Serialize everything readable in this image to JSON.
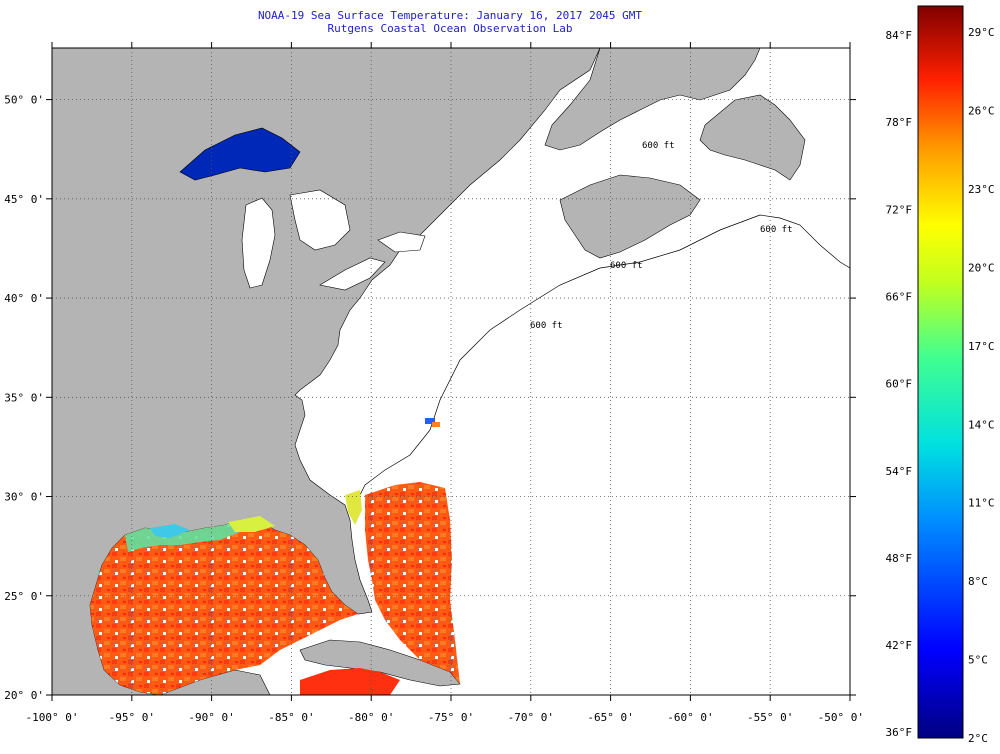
{
  "title": {
    "line1": "NOAA-19 Sea Surface Temperature:  January 16, 2017 2045 GMT",
    "line2": "Rutgens Coastal Ocean Observation Lab"
  },
  "axes": {
    "lat_labels": [
      "50° 0'",
      "45° 0'",
      "40° 0'",
      "35° 0'",
      "30° 0'",
      "25° 0'",
      "20° 0'"
    ],
    "lon_labels": [
      "-100° 0'",
      "-95° 0'",
      "-90° 0'",
      "-85° 0'",
      "-80° 0'",
      "-75° 0'",
      "-70° 0'",
      "-65° 0'",
      "-60° 0'",
      "-55° 0'",
      "-50° 0'"
    ],
    "lat_values": [
      50,
      45,
      40,
      35,
      30,
      25,
      20
    ],
    "lon_values": [
      -100,
      -95,
      -90,
      -85,
      -80,
      -75,
      -70,
      -65,
      -60,
      -55,
      -50
    ],
    "lat_range": [
      20,
      52.6
    ],
    "lon_range": [
      -100,
      -50
    ]
  },
  "colorbar": {
    "fahrenheit_labels": [
      "84°F",
      "78°F",
      "72°F",
      "66°F",
      "60°F",
      "54°F",
      "48°F",
      "42°F",
      "36°F"
    ],
    "celsius_labels": [
      "29°C",
      "26°C",
      "23°C",
      "20°C",
      "17°C",
      "14°C",
      "11°C",
      "8°C",
      "5°C",
      "2°C"
    ],
    "celsius_range": [
      2,
      30
    ]
  },
  "contour_labels": [
    "600 ft",
    "600 ft",
    "600 ft",
    "600 ft"
  ],
  "colors": {
    "land": "#b4b4b4",
    "nodata": "#ffffff",
    "title": "#2020c8",
    "warm_sst": "#ff4a10",
    "cold_lake": "#0020b0"
  }
}
